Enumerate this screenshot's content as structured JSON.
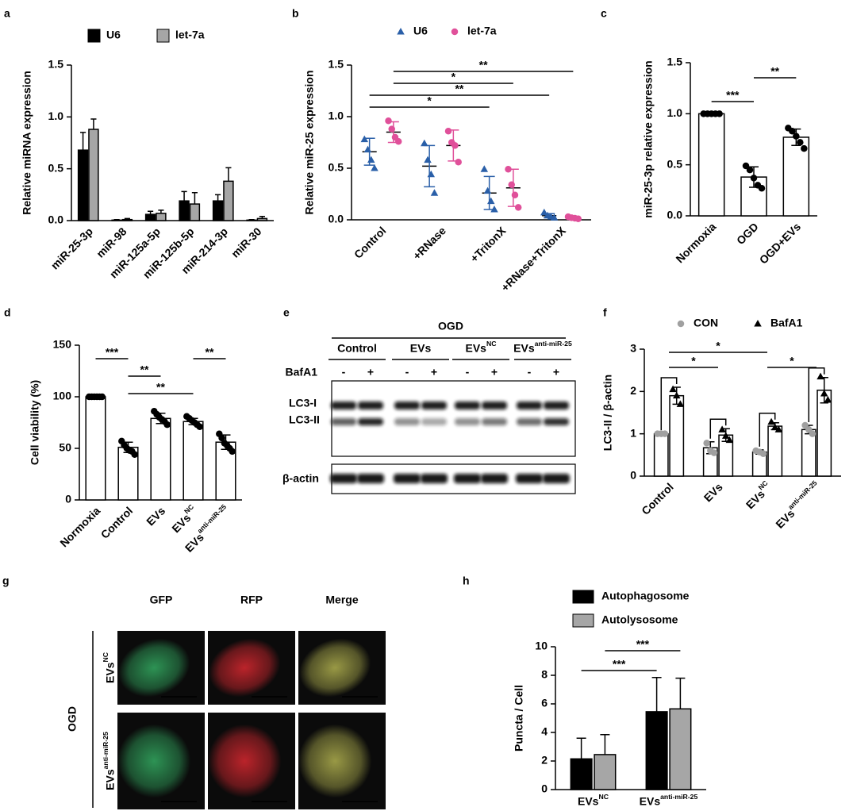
{
  "chart_data": [
    {
      "panel": "a",
      "type": "bar",
      "ylabel": "Relative miRNA expression",
      "categories": [
        "miR-25-3p",
        "miR-98",
        "miR-125a-5p",
        "miR-125b-5p",
        "miR-214-3p",
        "miR-30"
      ],
      "series": [
        {
          "name": "U6",
          "color": "#000000",
          "values": [
            0.68,
            0.005,
            0.06,
            0.19,
            0.19,
            0.005
          ],
          "errors": [
            0.17,
            0.005,
            0.03,
            0.09,
            0.06,
            0.005
          ]
        },
        {
          "name": "let-7a",
          "color": "#a6a6a6",
          "values": [
            0.88,
            0.01,
            0.07,
            0.16,
            0.38,
            0.02
          ],
          "errors": [
            0.1,
            0.01,
            0.03,
            0.11,
            0.13,
            0.02
          ]
        }
      ],
      "ylim": [
        0,
        1.5
      ],
      "yticks": [
        {
          "value": 0,
          "label": "0.0"
        },
        0.5,
        {
          "value": 1,
          "label": "1.0"
        },
        1.5
      ],
      "legend": "top",
      "error_style": "up"
    },
    {
      "panel": "b",
      "type": "dot",
      "ylabel": "Relative miR-25 expression",
      "categories": [
        "Control",
        "+RNase",
        "+TritonX",
        "+RNase+TritonX"
      ],
      "series": [
        {
          "name": "U6",
          "color": "#2a5fa8",
          "marker": "triangle",
          "values": [
            0.66,
            0.52,
            0.26,
            0.04
          ],
          "errors": [
            0.13,
            0.2,
            0.16,
            0.02
          ],
          "points": [
            [
              0.78,
              0.68,
              0.58,
              0.5
            ],
            [
              0.74,
              0.58,
              0.44,
              0.26
            ],
            [
              0.49,
              0.28,
              0.18,
              0.1
            ],
            [
              0.07,
              0.04,
              0.03,
              0.02
            ]
          ]
        },
        {
          "name": "let-7a",
          "color": "#e0509a",
          "marker": "circle",
          "values": [
            0.85,
            0.72,
            0.31,
            0.02
          ],
          "errors": [
            0.1,
            0.15,
            0.18,
            0.01
          ],
          "points": [
            [
              0.96,
              0.88,
              0.8,
              0.76
            ],
            [
              0.86,
              0.75,
              0.72,
              0.56
            ],
            [
              0.49,
              0.34,
              0.24,
              0.12
            ],
            [
              0.03,
              0.02,
              0.015,
              0.01
            ]
          ]
        }
      ],
      "ylim": [
        0,
        1.5
      ],
      "yticks": [
        {
          "value": 0,
          "label": "0.0"
        },
        0.5,
        {
          "value": 1,
          "label": "1.0"
        },
        1.5
      ],
      "legend": "top",
      "error_style": "both",
      "comparisons": [
        {
          "from": 0,
          "to": 3,
          "series": 1,
          "label": "**"
        },
        {
          "from": 0,
          "to": 2,
          "series": 1,
          "label": "*"
        },
        {
          "from": 0,
          "to": 3,
          "series": 0,
          "label": "**"
        },
        {
          "from": 0,
          "to": 2,
          "series": 0,
          "label": "*"
        }
      ]
    },
    {
      "panel": "c",
      "type": "bar",
      "ylabel": "miR-25-3p relative expression",
      "categories": [
        "Normoxia",
        "OGD",
        "OGD+EVs"
      ],
      "values": [
        1.0,
        0.38,
        0.77
      ],
      "errors": [
        0.005,
        0.1,
        0.08
      ],
      "points": [
        [
          1,
          1,
          1,
          1,
          1
        ],
        [
          0.49,
          0.45,
          0.37,
          0.3,
          0.27
        ],
        [
          0.86,
          0.83,
          0.78,
          0.72,
          0.66
        ]
      ],
      "color": "#000000",
      "bar_fill": "#ffffff",
      "marker": "circle",
      "ylim": [
        0,
        1.5
      ],
      "yticks": [
        {
          "value": 0,
          "label": "0.0"
        },
        0.5,
        {
          "value": 1,
          "label": "1.0"
        },
        1.5
      ],
      "error_style": "both",
      "comparisons": [
        {
          "from": 1,
          "to": 2,
          "label": "**"
        },
        {
          "from": 0,
          "to": 1,
          "label": "***"
        }
      ]
    },
    {
      "panel": "d",
      "type": "bar",
      "ylabel": "Cell viability (%)",
      "categories": [
        "Normoxia",
        "Control",
        "EVs",
        "EVs",
        "EVs"
      ],
      "category_superscripts": [
        null,
        null,
        null,
        "NC",
        "anti-miR-25"
      ],
      "values": [
        100,
        51,
        79,
        76,
        56
      ],
      "errors": [
        0.5,
        5,
        5,
        3,
        7
      ],
      "points": [
        [
          100,
          100,
          100,
          100,
          100,
          100
        ],
        [
          57,
          53,
          50,
          48,
          47,
          44
        ],
        [
          86,
          83,
          80,
          78,
          76,
          73
        ],
        [
          81,
          79,
          77,
          75,
          73,
          71
        ],
        [
          64,
          60,
          55,
          53,
          50,
          47
        ]
      ],
      "color": "#000000",
      "bar_fill": "#ffffff",
      "marker": "circle",
      "ylim": [
        0,
        150
      ],
      "yticks": [
        0,
        50,
        100,
        150
      ],
      "error_style": "both",
      "comparisons": [
        {
          "from": 0,
          "to": 1,
          "label": "***"
        },
        {
          "from": 1,
          "to": 2,
          "label": "**"
        },
        {
          "from": 1,
          "to": 3,
          "label": "**"
        },
        {
          "from": 3,
          "to": 4,
          "label": "**"
        }
      ]
    },
    {
      "panel": "f",
      "type": "bar",
      "ylabel": "LC3-II / β-actin",
      "categories": [
        "Control",
        "EVs",
        "EVs",
        "EVs"
      ],
      "category_superscripts": [
        null,
        null,
        "NC",
        "anti-miR-25"
      ],
      "series": [
        {
          "name": "CON",
          "color": "#a0a0a0",
          "marker": "circle",
          "values": [
            1.0,
            0.67,
            0.57,
            1.1
          ],
          "errors": [
            0.01,
            0.14,
            0.05,
            0.1
          ],
          "points": [
            [
              1,
              1,
              1
            ],
            [
              0.78,
              0.6,
              0.55
            ],
            [
              0.6,
              0.57,
              0.53
            ],
            [
              1.2,
              1.1,
              1.0
            ]
          ]
        },
        {
          "name": "BafA1",
          "color": "#000000",
          "marker": "triangle",
          "values": [
            1.9,
            0.97,
            1.18,
            2.03
          ],
          "errors": [
            0.2,
            0.15,
            0.08,
            0.3
          ],
          "points": [
            [
              2.05,
              1.9,
              1.7
            ],
            [
              1.1,
              0.95,
              0.85
            ],
            [
              1.28,
              1.15,
              1.1
            ],
            [
              2.35,
              1.95,
              1.8
            ]
          ]
        }
      ],
      "bar_fill": "#ffffff",
      "ylim": [
        0,
        3
      ],
      "yticks": [
        0,
        1,
        2,
        3
      ],
      "legend": "top",
      "error_style": "both",
      "paired": true,
      "comparisons": [
        {
          "from": 0,
          "to": 2,
          "label": "*"
        },
        {
          "from": 0,
          "to": 1,
          "label": "*"
        },
        {
          "from": 2,
          "to": 3,
          "label": "*"
        }
      ]
    },
    {
      "panel": "h",
      "type": "bar",
      "ylabel": "Puncta / Cell",
      "categories": [
        "EVs",
        "EVs"
      ],
      "category_superscripts": [
        "NC",
        "anti-miR-25"
      ],
      "series": [
        {
          "name": "Autophagosome",
          "color": "#000000",
          "values": [
            2.15,
            5.45
          ],
          "errors": [
            1.45,
            2.4
          ]
        },
        {
          "name": "Autolysosome",
          "color": "#a6a6a6",
          "values": [
            2.45,
            5.65
          ],
          "errors": [
            1.4,
            2.15
          ]
        }
      ],
      "ylim": [
        0,
        10
      ],
      "yticks": [
        0,
        2,
        4,
        6,
        8,
        10
      ],
      "legend": "top-left",
      "error_style": "up",
      "comparisons": [
        {
          "from": 0,
          "to": 1,
          "series": 1,
          "label": "***"
        },
        {
          "from": 0,
          "to": 1,
          "series": 0,
          "label": "***"
        }
      ]
    }
  ],
  "blot": {
    "panel": "e",
    "group": "OGD",
    "treatments": [
      "Control",
      "EVs",
      "EVs",
      "EVs"
    ],
    "treatment_superscripts": [
      null,
      null,
      "NC",
      "anti-miR-25"
    ],
    "drug": "BafA1",
    "drug_states": [
      "-",
      "+"
    ],
    "bands": [
      "LC3-I",
      "LC3-II"
    ],
    "loading_control": "β-actin"
  },
  "microscopy": {
    "panel": "g",
    "group": "OGD",
    "columns": [
      "GFP",
      "RFP",
      "Merge"
    ],
    "column_colors": [
      "#2f9a58",
      "#c4252c",
      "#a0a048"
    ],
    "rows": [
      "EVs",
      "EVs"
    ],
    "row_superscripts": [
      "NC",
      "anti-miR-25"
    ]
  }
}
